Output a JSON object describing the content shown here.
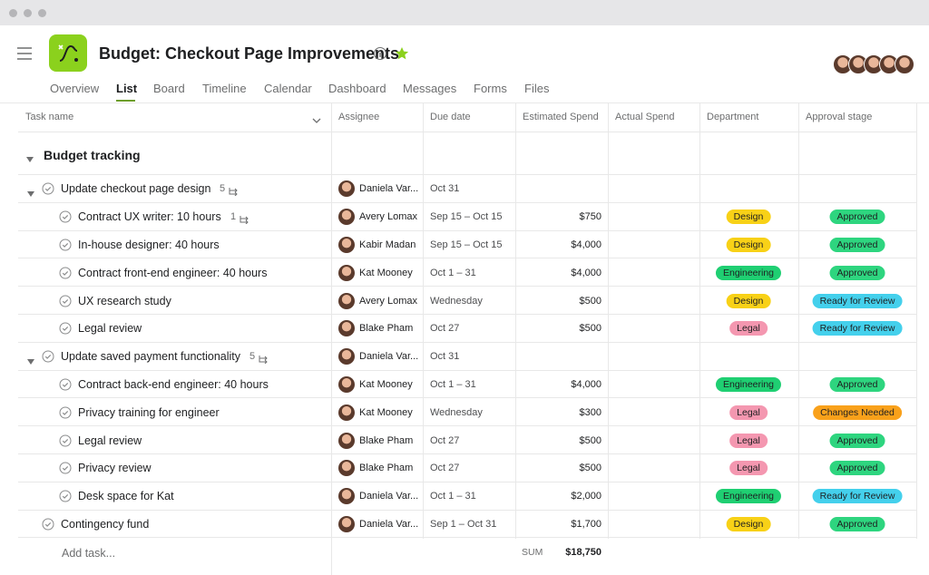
{
  "header": {
    "title": "Budget: Checkout Page Improvements",
    "tabs": [
      "Overview",
      "List",
      "Board",
      "Timeline",
      "Calendar",
      "Dashboard",
      "Messages",
      "Forms",
      "Files"
    ]
  },
  "table": {
    "columns": [
      "Task name",
      "Assignee",
      "Due date",
      "Estimated Spend",
      "Actual Spend",
      "Department",
      "Approval stage"
    ],
    "section": "Budget tracking",
    "tasks": [
      {
        "name": "Update checkout page design",
        "subtasks": "5",
        "assignee": "Daniela Var...",
        "due": "Oct 31",
        "children": [
          {
            "name": "Contract UX writer: 10 hours",
            "subtasks": "1",
            "assignee": "Avery Lomax",
            "due": "Sep 15 – Oct 15",
            "estimated": "$750",
            "department": {
              "label": "Design",
              "color": "#f8d117"
            },
            "approval": {
              "label": "Approved",
              "color": "#2ed57f"
            }
          },
          {
            "name": "In-house designer: 40 hours",
            "assignee": "Kabir Madan",
            "due": "Sep 15 – Oct 15",
            "estimated": "$4,000",
            "department": {
              "label": "Design",
              "color": "#f8d117"
            },
            "approval": {
              "label": "Approved",
              "color": "#2ed57f"
            }
          },
          {
            "name": "Contract front-end engineer: 40 hours",
            "assignee": "Kat Mooney",
            "due": "Oct 1 – 31",
            "estimated": "$4,000",
            "department": {
              "label": "Engineering",
              "color": "#1fcf72"
            },
            "approval": {
              "label": "Approved",
              "color": "#2ed57f"
            }
          },
          {
            "name": "UX research study",
            "assignee": "Avery Lomax",
            "due": "Wednesday",
            "estimated": "$500",
            "department": {
              "label": "Design",
              "color": "#f8d117"
            },
            "approval": {
              "label": "Ready for Review",
              "color": "#44d0ec"
            }
          },
          {
            "name": "Legal review",
            "assignee": "Blake Pham",
            "due": "Oct 27",
            "estimated": "$500",
            "department": {
              "label": "Legal",
              "color": "#f497b0"
            },
            "approval": {
              "label": "Ready for Review",
              "color": "#44d0ec"
            }
          }
        ]
      },
      {
        "name": "Update saved payment functionality",
        "subtasks": "5",
        "assignee": "Daniela Var...",
        "due": "Oct 31",
        "children": [
          {
            "name": "Contract back-end engineer: 40 hours",
            "assignee": "Kat Mooney",
            "due": "Oct 1 – 31",
            "estimated": "$4,000",
            "department": {
              "label": "Engineering",
              "color": "#1fcf72"
            },
            "approval": {
              "label": "Approved",
              "color": "#2ed57f"
            }
          },
          {
            "name": "Privacy training for engineer",
            "assignee": "Kat Mooney",
            "due": "Wednesday",
            "estimated": "$300",
            "department": {
              "label": "Legal",
              "color": "#f497b0"
            },
            "approval": {
              "label": "Changes Needed",
              "color": "#f9a11b"
            }
          },
          {
            "name": "Legal review",
            "assignee": "Blake Pham",
            "due": "Oct 27",
            "estimated": "$500",
            "department": {
              "label": "Legal",
              "color": "#f497b0"
            },
            "approval": {
              "label": "Approved",
              "color": "#2ed57f"
            }
          },
          {
            "name": "Privacy review",
            "assignee": "Blake Pham",
            "due": "Oct 27",
            "estimated": "$500",
            "department": {
              "label": "Legal",
              "color": "#f497b0"
            },
            "approval": {
              "label": "Approved",
              "color": "#2ed57f"
            }
          },
          {
            "name": "Desk space for Kat",
            "assignee": "Daniela Var...",
            "due": "Oct 1 – 31",
            "estimated": "$2,000",
            "department": {
              "label": "Engineering",
              "color": "#1fcf72"
            },
            "approval": {
              "label": "Ready for Review",
              "color": "#44d0ec"
            }
          }
        ]
      },
      {
        "name": "Contingency fund",
        "assignee": "Daniela Var...",
        "due": "Sep 1 – Oct 31",
        "estimated": "$1,700",
        "department": {
          "label": "Design",
          "color": "#f8d117"
        },
        "approval": {
          "label": "Approved",
          "color": "#2ed57f"
        }
      }
    ],
    "footer": {
      "add_task": "Add task...",
      "sum_label": "SUM",
      "sum": "$18,750"
    }
  }
}
